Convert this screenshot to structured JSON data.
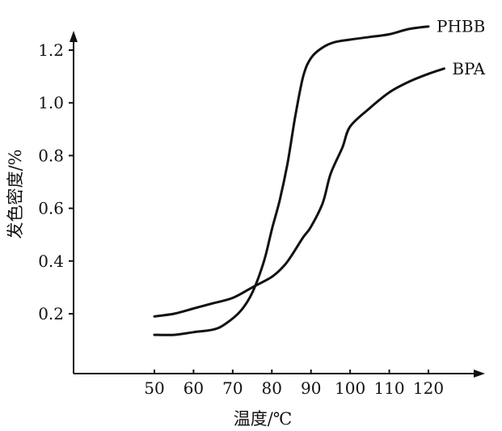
{
  "chart_data": {
    "type": "line",
    "xlabel": "温度/℃",
    "ylabel": "发色密度/%",
    "xlim": [
      30,
      130
    ],
    "ylim": [
      0.0,
      1.25
    ],
    "xticks": [
      50,
      60,
      70,
      80,
      90,
      100,
      110,
      120
    ],
    "xtick_labels": [
      "50",
      "60",
      "70",
      "80",
      "90",
      "100",
      "110",
      "120"
    ],
    "yticks": [
      0.2,
      0.4,
      0.6,
      0.8,
      1.0,
      1.2
    ],
    "ytick_labels": [
      "0.2",
      "0.4",
      "0.6",
      "0.8",
      "1.0",
      "1.2"
    ],
    "grid": false,
    "legend": "none",
    "series": [
      {
        "name": "PHBB",
        "x": [
          50,
          55,
          60,
          65,
          68,
          72,
          75,
          78,
          80,
          82,
          84,
          86,
          88,
          90,
          93,
          96,
          100,
          105,
          110,
          115,
          120
        ],
        "y": [
          0.12,
          0.12,
          0.13,
          0.14,
          0.16,
          0.21,
          0.28,
          0.4,
          0.52,
          0.63,
          0.77,
          0.95,
          1.1,
          1.17,
          1.21,
          1.23,
          1.24,
          1.25,
          1.26,
          1.28,
          1.29
        ]
      },
      {
        "name": "BPA",
        "x": [
          50,
          55,
          60,
          65,
          70,
          75,
          80,
          83,
          85,
          88,
          90,
          93,
          95,
          98,
          100,
          105,
          110,
          115,
          120,
          124
        ],
        "y": [
          0.19,
          0.2,
          0.22,
          0.24,
          0.26,
          0.3,
          0.34,
          0.38,
          0.42,
          0.49,
          0.53,
          0.62,
          0.73,
          0.83,
          0.91,
          0.98,
          1.04,
          1.08,
          1.11,
          1.13
        ]
      }
    ]
  }
}
